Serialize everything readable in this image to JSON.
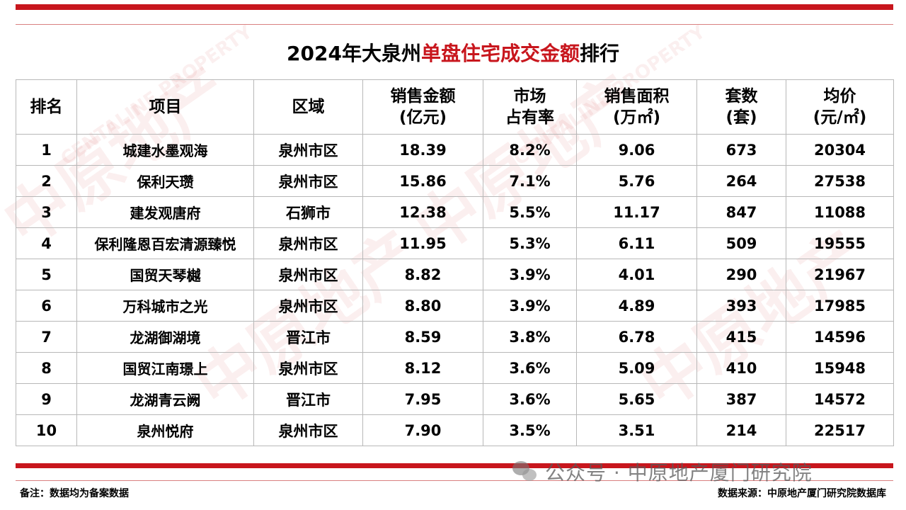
{
  "title": {
    "prefix": "2024年大泉州",
    "highlight": "单盘住宅成交金额",
    "suffix": "排行"
  },
  "headers": {
    "rank": [
      "排名"
    ],
    "project": [
      "项目"
    ],
    "region": [
      "区域"
    ],
    "sales": [
      "销售金额",
      "(亿元)"
    ],
    "share": [
      "市场",
      "占有率"
    ],
    "area": [
      "销售面积",
      "(万㎡)"
    ],
    "units": [
      "套数",
      "(套)"
    ],
    "price": [
      "均价",
      "(元/㎡)"
    ]
  },
  "rows": [
    {
      "rank": "1",
      "project": "城建水墨观海",
      "region": "泉州市区",
      "sales": "18.39",
      "share": "8.2%",
      "area": "9.06",
      "units": "673",
      "price": "20304"
    },
    {
      "rank": "2",
      "project": "保利天瓒",
      "region": "泉州市区",
      "sales": "15.86",
      "share": "7.1%",
      "area": "5.76",
      "units": "264",
      "price": "27538"
    },
    {
      "rank": "3",
      "project": "建发观唐府",
      "region": "石狮市",
      "sales": "12.38",
      "share": "5.5%",
      "area": "11.17",
      "units": "847",
      "price": "11088"
    },
    {
      "rank": "4",
      "project": "保利隆恩百宏清源臻悦",
      "region": "泉州市区",
      "sales": "11.95",
      "share": "5.3%",
      "area": "6.11",
      "units": "509",
      "price": "19555"
    },
    {
      "rank": "5",
      "project": "国贸天琴樾",
      "region": "泉州市区",
      "sales": "8.82",
      "share": "3.9%",
      "area": "4.01",
      "units": "290",
      "price": "21967"
    },
    {
      "rank": "6",
      "project": "万科城市之光",
      "region": "泉州市区",
      "sales": "8.80",
      "share": "3.9%",
      "area": "4.89",
      "units": "393",
      "price": "17985"
    },
    {
      "rank": "7",
      "project": "龙湖御湖境",
      "region": "晋江市",
      "sales": "8.59",
      "share": "3.8%",
      "area": "6.78",
      "units": "415",
      "price": "14596"
    },
    {
      "rank": "8",
      "project": "国贸江南璟上",
      "region": "泉州市区",
      "sales": "8.12",
      "share": "3.6%",
      "area": "5.09",
      "units": "410",
      "price": "15948"
    },
    {
      "rank": "9",
      "project": "龙湖青云阙",
      "region": "晋江市",
      "sales": "7.95",
      "share": "3.6%",
      "area": "5.65",
      "units": "387",
      "price": "14572"
    },
    {
      "rank": "10",
      "project": "泉州悦府",
      "region": "泉州市区",
      "sales": "7.90",
      "share": "3.5%",
      "area": "3.51",
      "units": "214",
      "price": "22517"
    }
  ],
  "footer": {
    "note": "备注：数据均为备案数据",
    "source": "数据来源：中原地产厦门研究院数据库",
    "wechat": "公众号 · 中原地产厦门研究院",
    "wechat_icon": "wechat-icon"
  },
  "watermark": {
    "brand": "中原地产",
    "latin": "CENTALINE PROPERTY",
    "color": "#c8161d"
  },
  "colors": {
    "accent": "#c8161d",
    "grid": "#b8b8b8"
  }
}
